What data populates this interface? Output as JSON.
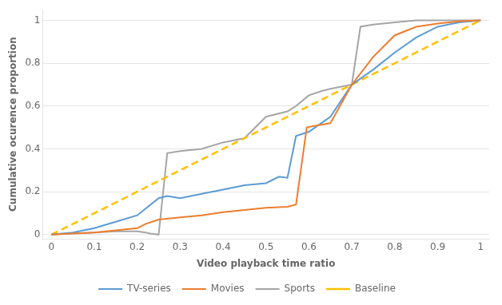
{
  "chart_data": {
    "type": "line",
    "x_label": "Video playback time ratio",
    "y_label": "Cumulative ocurence proportion",
    "series": [
      {
        "name": "TV-series",
        "color": "#5B9BD5",
        "line_style": "solid",
        "x": [
          0,
          0.05,
          0.1,
          0.15,
          0.2,
          0.25,
          0.27,
          0.3,
          0.35,
          0.4,
          0.45,
          0.5,
          0.53,
          0.55,
          0.57,
          0.6,
          0.65,
          0.7,
          0.75,
          0.8,
          0.85,
          0.9,
          0.95,
          1.0
        ],
        "values": [
          0,
          0.01,
          0.03,
          0.06,
          0.09,
          0.17,
          0.18,
          0.17,
          0.19,
          0.21,
          0.23,
          0.24,
          0.27,
          0.265,
          0.46,
          0.48,
          0.55,
          0.7,
          0.77,
          0.85,
          0.92,
          0.97,
          0.99,
          1.0
        ]
      },
      {
        "name": "Movies",
        "color": "#ED7D31",
        "line_style": "solid",
        "x": [
          0,
          0.05,
          0.1,
          0.15,
          0.2,
          0.22,
          0.25,
          0.3,
          0.35,
          0.4,
          0.45,
          0.5,
          0.55,
          0.57,
          0.595,
          0.62,
          0.65,
          0.7,
          0.75,
          0.8,
          0.85,
          0.9,
          0.95,
          1.0
        ],
        "values": [
          0,
          0.005,
          0.01,
          0.02,
          0.03,
          0.05,
          0.07,
          0.08,
          0.09,
          0.105,
          0.115,
          0.125,
          0.13,
          0.14,
          0.5,
          0.51,
          0.52,
          0.7,
          0.83,
          0.93,
          0.97,
          0.985,
          0.995,
          1.0
        ]
      },
      {
        "name": "Sports",
        "color": "#A5A5A5",
        "line_style": "solid",
        "x": [
          0,
          0.05,
          0.1,
          0.15,
          0.2,
          0.22,
          0.23,
          0.25,
          0.27,
          0.3,
          0.35,
          0.4,
          0.45,
          0.5,
          0.55,
          0.57,
          0.6,
          0.63,
          0.65,
          0.7,
          0.72,
          0.75,
          0.8,
          0.85,
          0.9,
          0.95,
          1.0
        ],
        "values": [
          0,
          0.005,
          0.01,
          0.015,
          0.015,
          0.01,
          0.005,
          0.0,
          0.38,
          0.39,
          0.4,
          0.43,
          0.45,
          0.55,
          0.575,
          0.6,
          0.65,
          0.67,
          0.68,
          0.7,
          0.97,
          0.98,
          0.99,
          1.0,
          1.0,
          1.0,
          1.0
        ]
      },
      {
        "name": "Baseline",
        "color": "#FFC000",
        "line_style": "dashed",
        "x": [
          0,
          1.0
        ],
        "values": [
          0,
          1.0
        ]
      }
    ],
    "xlim": [
      -0.02,
      1.02
    ],
    "ylim": [
      -0.02,
      1.05
    ],
    "xticks": [
      0,
      0.1,
      0.2,
      0.3,
      0.4,
      0.5,
      0.6,
      0.7,
      0.8,
      0.9,
      1
    ],
    "yticks": [
      0,
      0.2,
      0.4,
      0.6,
      0.8,
      1
    ],
    "grid": "y",
    "legend": "bottom"
  }
}
